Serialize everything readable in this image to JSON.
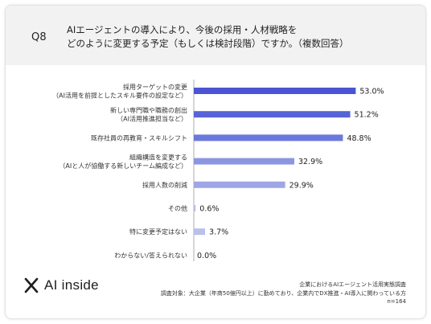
{
  "header": {
    "qnum": "Q8",
    "title_line1": "AIエージェントの導入により、今後の採用・人材戦略を",
    "title_line2": "どのように変更する予定（もしくは検討段階）ですか。（複数回答）"
  },
  "colors": {
    "header_bg": "#f2f2f2",
    "bar_gradient": [
      "#4a55d4",
      "#5664d8",
      "#6b79db",
      "#8b96e1",
      "#9ea6e6",
      "#b9c0ec",
      "#b9c0ec",
      "#c8cdef"
    ]
  },
  "chart_data": {
    "type": "bar",
    "orientation": "horizontal",
    "categories": [
      [
        "採用ターゲットの変更",
        "（AI活用を前提としたスキル要件の設定など）"
      ],
      [
        "新しい専門職や職務の創出",
        "（AI活用推進担当など）"
      ],
      [
        "既存社員の再教育・スキルシフト"
      ],
      [
        "組織構造を変更する",
        "（AIと人が協働する新しいチーム編成など）"
      ],
      [
        "採用人数の削減"
      ],
      [
        "その他"
      ],
      [
        "特に変更予定はない"
      ],
      [
        "わからない/答えられない"
      ]
    ],
    "values": [
      53.0,
      51.2,
      48.8,
      32.9,
      29.9,
      0.6,
      3.7,
      0.0
    ],
    "value_labels": [
      "53.0%",
      "51.2%",
      "48.8%",
      "32.9%",
      "29.9%",
      "0.6%",
      "3.7%",
      "0.0%"
    ],
    "xlim": [
      0,
      100
    ],
    "grid": false,
    "legend": "none"
  },
  "logo": {
    "text": "AI inside"
  },
  "footer": {
    "line1": "企業におけるAIエージェント活用実態調査",
    "line2": "調査対象：大企業（年商50億円以上）に勤めており、企業内でDX推進・AI導入に関わっている方",
    "line3": "n=164"
  }
}
